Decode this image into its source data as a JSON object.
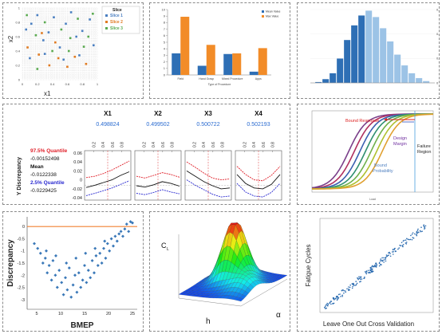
{
  "slice_scatter": {
    "type": "scatter",
    "xlabel": "x1",
    "ylabel": "x2",
    "legend_title": "Slice",
    "legend_position": "right",
    "xlim": [
      0,
      1
    ],
    "ylim": [
      0,
      1
    ],
    "x_ticks": [
      "0",
      "0.2",
      "0.4",
      "0.6",
      "0.8",
      "1"
    ],
    "y_ticks": [
      "0",
      "0.2",
      "0.4",
      "0.6",
      "0.8",
      "1"
    ],
    "series": [
      {
        "name": "Slice 1",
        "color": "#4a7fc1",
        "points": [
          [
            0.05,
            0.7
          ],
          [
            0.12,
            0.78
          ],
          [
            0.2,
            0.9
          ],
          [
            0.28,
            0.55
          ],
          [
            0.35,
            0.66
          ],
          [
            0.42,
            0.87
          ],
          [
            0.5,
            0.45
          ],
          [
            0.58,
            0.78
          ],
          [
            0.65,
            0.94
          ],
          [
            0.72,
            0.6
          ],
          [
            0.8,
            0.68
          ],
          [
            0.9,
            0.84
          ],
          [
            0.1,
            0.3
          ],
          [
            0.3,
            0.36
          ],
          [
            0.55,
            0.28
          ],
          [
            0.76,
            0.34
          ],
          [
            0.95,
            0.48
          ]
        ]
      },
      {
        "name": "Slice 2",
        "color": "#e07a20",
        "points": [
          [
            0.07,
            0.45
          ],
          [
            0.22,
            0.35
          ],
          [
            0.36,
            0.2
          ],
          [
            0.48,
            0.3
          ],
          [
            0.6,
            0.18
          ],
          [
            0.7,
            0.32
          ],
          [
            0.85,
            0.22
          ],
          [
            0.26,
            0.65
          ],
          [
            0.44,
            0.52
          ]
        ]
      },
      {
        "name": "Slice 3",
        "color": "#5aaa50",
        "points": [
          [
            0.06,
            0.9
          ],
          [
            0.18,
            0.62
          ],
          [
            0.3,
            0.8
          ],
          [
            0.4,
            0.4
          ],
          [
            0.52,
            0.7
          ],
          [
            0.64,
            0.58
          ],
          [
            0.74,
            0.85
          ],
          [
            0.88,
            0.6
          ],
          [
            0.94,
            0.92
          ],
          [
            0.2,
            0.15
          ],
          [
            0.62,
            0.4
          ],
          [
            0.82,
            0.46
          ]
        ]
      }
    ]
  },
  "metric_bars": {
    "type": "bar",
    "xlabel": "Type of Procedure",
    "legend_position": "top-right",
    "ylim": [
      0,
      10
    ],
    "y_ticks": [
      "0",
      "1",
      "2",
      "3",
      "4",
      "5",
      "6",
      "7",
      "8",
      "9",
      "10"
    ],
    "categories": [
      "Field",
      "Hand Grasp",
      "Mixed Procedure",
      "Apps"
    ],
    "series": [
      {
        "name": "Mean Value",
        "color": "#2e6fb5",
        "values": [
          3.3,
          1.4,
          3.2,
          0.5
        ]
      },
      {
        "name": "Max Value",
        "color": "#f28c28",
        "values": [
          8.9,
          4.6,
          3.3,
          4.1
        ]
      }
    ]
  },
  "histogram": {
    "type": "bar",
    "ylim": [
      0,
      0.15
    ],
    "y_ticks": [
      "0",
      "0.05",
      "0.1",
      "0.15"
    ],
    "color_dark": "#2e6fb5",
    "color_light": "#9cc3e6",
    "values": [
      0.002,
      0.008,
      0.02,
      0.05,
      0.088,
      0.118,
      0.138,
      0.148,
      0.135,
      0.112,
      0.085,
      0.058,
      0.036,
      0.02,
      0.01,
      0.004
    ],
    "split_index": 7
  },
  "discrepancy_profiles": {
    "type": "line",
    "ylabel": "Y Discrepancy",
    "ylim": [
      -0.045,
      0.065
    ],
    "y_ticks": [
      "0.06",
      "0.04",
      "0.02",
      "0",
      "-0.02",
      "-0.04"
    ],
    "x_ticks": [
      "0.2",
      "0.4",
      "0.6",
      "0.8"
    ],
    "panels": [
      {
        "title": "X1",
        "current": "0.498824",
        "upper": [
          0.005,
          0.008,
          0.014,
          0.022,
          0.032,
          0.042
        ],
        "mean": [
          -0.017,
          -0.012,
          -0.006,
          0.0,
          0.01,
          0.018
        ],
        "lower": [
          -0.035,
          -0.03,
          -0.024,
          -0.018,
          -0.01,
          -0.002
        ]
      },
      {
        "title": "X2",
        "current": "0.499502",
        "upper": [
          0.008,
          0.004,
          0.01,
          0.016,
          0.012,
          0.006
        ],
        "mean": [
          -0.013,
          -0.016,
          -0.011,
          -0.004,
          -0.008,
          -0.014
        ],
        "lower": [
          -0.03,
          -0.033,
          -0.028,
          -0.022,
          -0.027,
          -0.031
        ]
      },
      {
        "title": "X3",
        "current": "0.500722",
        "upper": [
          0.04,
          0.028,
          0.015,
          0.004,
          0.0,
          0.002
        ],
        "mean": [
          0.02,
          0.008,
          -0.004,
          -0.013,
          -0.02,
          -0.018
        ],
        "lower": [
          0.0,
          -0.012,
          -0.022,
          -0.032,
          -0.038,
          -0.036
        ]
      },
      {
        "title": "X4",
        "current": "0.502193",
        "upper": [
          0.03,
          0.012,
          0.0,
          -0.002,
          0.01,
          0.03
        ],
        "mean": [
          0.012,
          -0.008,
          -0.018,
          -0.02,
          -0.01,
          0.012
        ],
        "lower": [
          -0.008,
          -0.027,
          -0.036,
          -0.038,
          -0.028,
          -0.008
        ]
      }
    ],
    "quantile_upper_label": "97.5% Quantile",
    "quantile_upper_value": "-0.00152498",
    "mean_label": "Mean",
    "mean_value": "-0.0122338",
    "quantile_lower_label": "2.5% Quantile",
    "quantile_lower_value": "-0.0229425",
    "color_upper": "#e0202a",
    "color_mean": "#111111",
    "color_lower": "#2a2ad0"
  },
  "reliability_curves": {
    "type": "line",
    "xlabel": "Load",
    "annotations": {
      "bound_response": "Bound Response",
      "design_margin_1": "Design",
      "design_margin_2": "Margin",
      "failure_region_1": "Failure",
      "failure_region_2": "Region",
      "bound_probability_1": "Bound",
      "bound_probability_2": "Probability"
    },
    "curve_colors": [
      "#7b3f8a",
      "#b03060",
      "#3a5fb0",
      "#2f8f6f",
      "#6fb04a",
      "#b0c030",
      "#e0a030"
    ]
  },
  "bmep_scatter": {
    "type": "scatter",
    "xlabel": "BMEP",
    "ylabel": "Discrepancy",
    "xlim": [
      3,
      26
    ],
    "ylim": [
      -3.4,
      0.4
    ],
    "x_ticks": [
      5,
      10,
      15,
      20,
      25
    ],
    "y_ticks": [
      0,
      -0.5,
      -1,
      -1.5,
      -2,
      -2.5,
      -3
    ],
    "reference_line": 0,
    "point_color": "#3a78b8",
    "line_color": "#f08030",
    "points": [
      [
        4.5,
        -0.7
      ],
      [
        5.2,
        -0.9
      ],
      [
        5.8,
        -1.1
      ],
      [
        6.3,
        -1.5
      ],
      [
        6.8,
        -1.3
      ],
      [
        7.2,
        -1.9
      ],
      [
        7.6,
        -1.6
      ],
      [
        8.1,
        -2.2
      ],
      [
        8.4,
        -1.4
      ],
      [
        8.9,
        -2.0
      ],
      [
        9.3,
        -2.5
      ],
      [
        9.7,
        -1.8
      ],
      [
        10.2,
        -2.3
      ],
      [
        10.6,
        -2.8
      ],
      [
        11.0,
        -2.1
      ],
      [
        11.4,
        -2.6
      ],
      [
        11.8,
        -1.7
      ],
      [
        12.2,
        -2.9
      ],
      [
        12.6,
        -2.4
      ],
      [
        13.0,
        -2.0
      ],
      [
        13.4,
        -2.7
      ],
      [
        13.8,
        -1.9
      ],
      [
        14.2,
        -2.5
      ],
      [
        14.6,
        -2.2
      ],
      [
        15.0,
        -1.6
      ],
      [
        15.4,
        -2.3
      ],
      [
        15.8,
        -1.8
      ],
      [
        16.2,
        -2.1
      ],
      [
        16.6,
        -1.4
      ],
      [
        17.0,
        -1.9
      ],
      [
        17.4,
        -1.2
      ],
      [
        17.8,
        -1.6
      ],
      [
        18.2,
        -1.1
      ],
      [
        18.6,
        -1.5
      ],
      [
        19.0,
        -0.9
      ],
      [
        19.4,
        -1.3
      ],
      [
        19.8,
        -0.7
      ],
      [
        20.2,
        -1.0
      ],
      [
        20.6,
        -0.5
      ],
      [
        21.0,
        -0.8
      ],
      [
        21.4,
        -0.4
      ],
      [
        21.8,
        -0.6
      ],
      [
        22.2,
        -0.3
      ],
      [
        22.6,
        -0.2
      ],
      [
        23.0,
        -0.4
      ],
      [
        23.4,
        -0.1
      ],
      [
        23.8,
        0.1
      ],
      [
        24.2,
        -0.2
      ],
      [
        24.6,
        0.2
      ],
      [
        25.0,
        0.15
      ],
      [
        7.0,
        -1.0
      ],
      [
        9.0,
        -1.2
      ],
      [
        11.2,
        -1.5
      ],
      [
        13.2,
        -1.3
      ],
      [
        15.2,
        -1.1
      ],
      [
        17.2,
        -0.9
      ],
      [
        19.2,
        -0.6
      ]
    ]
  },
  "surface_plot": {
    "type": "heatmap",
    "zlabel": "C",
    "zlabel_sub": "L",
    "xlabel": "h",
    "ylabel": "α"
  },
  "loocv_scatter": {
    "type": "scatter",
    "xlabel": "Leave One Out Cross Validation",
    "ylabel": "Fatigue Cycles",
    "point_color": "#2a6bb0",
    "slope": 1,
    "n_points": 220
  }
}
